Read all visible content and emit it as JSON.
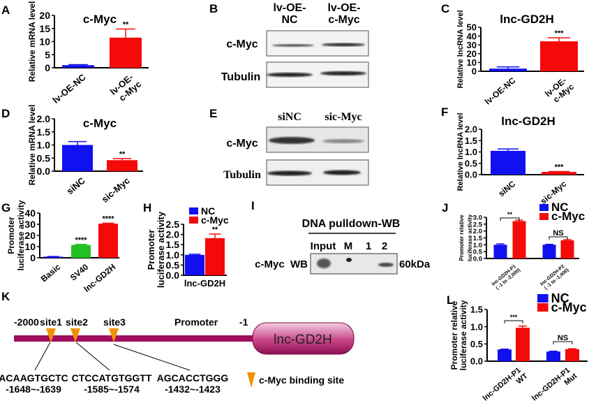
{
  "panel_letters": {
    "A": "A",
    "B": "B",
    "C": "C",
    "D": "D",
    "E": "E",
    "F": "F",
    "G": "G",
    "H": "H",
    "I": "I",
    "J": "J",
    "K": "K",
    "L": "L"
  },
  "colors": {
    "blue": "#1010f0",
    "red": "#f50a0a",
    "green": "#22c022",
    "promoter": "#9e0e5c",
    "site": "#f39200"
  },
  "chart_data": [
    {
      "id": "A",
      "type": "bar",
      "title": "c-Myc",
      "ylabel": [
        "Relative mRNA  level"
      ],
      "ylim": [
        0,
        20
      ],
      "yticks": [
        "0",
        "5",
        "10",
        "15",
        "20"
      ],
      "categories": [
        "lv-OE-NC",
        "lv-OE-\nc-Myc"
      ],
      "series": [
        {
          "colors": [
            "#1010f0",
            "#f50a0a"
          ],
          "values": [
            1.0,
            11.5
          ],
          "errors": [
            0.2,
            3.3
          ]
        }
      ],
      "annotations": [
        {
          "type": "star",
          "category": 1,
          "text": "**"
        }
      ]
    },
    {
      "id": "C",
      "type": "bar",
      "title": "lnc-GD2H",
      "ylabel": [
        "Relative lncRNA level"
      ],
      "ylim": [
        0,
        50
      ],
      "yticks": [
        "0",
        "10",
        "20",
        "30",
        "40",
        "50"
      ],
      "categories": [
        "lv-OE-NC",
        "lv-OE-\nc-Myc"
      ],
      "series": [
        {
          "colors": [
            "#1010f0",
            "#f50a0a"
          ],
          "values": [
            3,
            34
          ],
          "errors": [
            2,
            4
          ]
        }
      ],
      "annotations": [
        {
          "type": "star",
          "category": 1,
          "text": "***"
        }
      ]
    },
    {
      "id": "D",
      "type": "bar",
      "title": "c-Myc",
      "ylabel": [
        "Relative mRNA level"
      ],
      "ylim": [
        0,
        2
      ],
      "yticks": [
        "0.0",
        "0.5",
        "1.0",
        "1.5",
        "2.0"
      ],
      "categories": [
        "siNC",
        "sic-Myc"
      ],
      "series": [
        {
          "colors": [
            "#1010f0",
            "#f50a0a"
          ],
          "values": [
            1.0,
            0.42
          ],
          "errors": [
            0.13,
            0.06
          ]
        }
      ],
      "annotations": [
        {
          "type": "star",
          "category": 1,
          "text": "**"
        }
      ]
    },
    {
      "id": "F",
      "type": "bar",
      "title": "lnc-GD2H",
      "ylabel": [
        "Relative lncRNA level"
      ],
      "ylim": [
        0,
        2
      ],
      "yticks": [
        "0.0",
        "0.5",
        "1.0",
        "1.5",
        "2.0"
      ],
      "categories": [
        "siNC",
        "sic-Myc"
      ],
      "series": [
        {
          "colors": [
            "#1010f0",
            "#f50a0a"
          ],
          "values": [
            1.05,
            0.12
          ],
          "errors": [
            0.08,
            0.02
          ]
        }
      ],
      "annotations": [
        {
          "type": "star",
          "category": 1,
          "text": "***"
        }
      ]
    },
    {
      "id": "G",
      "type": "bar",
      "title": "",
      "ylabel": [
        "Promoter",
        "luciferase activity"
      ],
      "ylim": [
        0,
        40
      ],
      "yticks": [
        "0",
        "10",
        "20",
        "30",
        "40"
      ],
      "categories": [
        "Basic",
        "SV40",
        "lnc-GD2H"
      ],
      "series": [
        {
          "colors": [
            "#1010f0",
            "#22c022",
            "#f50a0a"
          ],
          "values": [
            1,
            11.5,
            30.5
          ],
          "errors": [
            0.2,
            0.5,
            0.4
          ]
        }
      ],
      "annotations": [
        {
          "type": "star",
          "category": 1,
          "text": "****"
        },
        {
          "type": "star",
          "category": 2,
          "text": "****"
        }
      ]
    },
    {
      "id": "H",
      "type": "bar",
      "title": "",
      "ylabel": [
        "Promoter",
        "luciferase activity"
      ],
      "ylim": [
        0,
        2.5
      ],
      "yticks": [
        "0.0",
        "0.5",
        "1.0",
        "1.5",
        "2.0",
        "2.5"
      ],
      "categories": [
        "lnc-GD2H"
      ],
      "legend": [
        "NC",
        "c-Myc"
      ],
      "series": [
        {
          "name": "NC",
          "color": "#1010f0",
          "values": [
            1.0
          ],
          "errors": [
            0.03
          ]
        },
        {
          "name": "c-Myc",
          "color": "#f50a0a",
          "values": [
            1.82
          ],
          "errors": [
            0.2
          ]
        }
      ],
      "annotations": [
        {
          "type": "star",
          "category": 0,
          "series": 1,
          "text": "**"
        }
      ]
    },
    {
      "id": "J",
      "type": "bar",
      "title": "",
      "ylabel": [
        "Promoter relative",
        "luciferase activity"
      ],
      "ylim": [
        0,
        3
      ],
      "yticks": [
        "0.0",
        "0.5",
        "1.0",
        "1.5",
        "2.0",
        "2.5",
        "3.0"
      ],
      "categories": [
        "lnc-GD2H-P1\n( -1 to -2,000)",
        "lnc-GD2H-P2\n( -1 to -1,400)"
      ],
      "legend": [
        "NC",
        "c-Myc"
      ],
      "series": [
        {
          "name": "NC",
          "color": "#1010f0",
          "values": [
            1.0,
            1.0
          ],
          "errors": [
            0.06,
            0.03
          ]
        },
        {
          "name": "c-Myc",
          "color": "#f50a0a",
          "values": [
            2.72,
            1.32
          ],
          "errors": [
            0.07,
            0.05
          ]
        }
      ],
      "annotations": [
        {
          "type": "bracket",
          "category": 0,
          "text": "**"
        },
        {
          "type": "bracket",
          "category": 1,
          "text": "NS"
        }
      ]
    },
    {
      "id": "L",
      "type": "bar",
      "title": "",
      "ylabel": [
        "Promoter relative",
        "luciferase activity"
      ],
      "ylim": [
        0,
        1.5
      ],
      "yticks": [
        "0.0",
        "0.5",
        "1.0",
        "1.5"
      ],
      "categories": [
        "lnc-GD2H-P1\nWT",
        "lnc-GD2H-P1\nMut"
      ],
      "legend": [
        "NC",
        "c-Myc"
      ],
      "series": [
        {
          "name": "NC",
          "color": "#1010f0",
          "values": [
            0.34,
            0.28
          ],
          "errors": [
            0.01,
            0.01
          ]
        },
        {
          "name": "c-Myc",
          "color": "#f50a0a",
          "values": [
            0.97,
            0.35
          ],
          "errors": [
            0.05,
            0.01
          ]
        }
      ],
      "annotations": [
        {
          "type": "bracket",
          "category": 0,
          "text": "***"
        },
        {
          "type": "bracket",
          "category": 1,
          "text": "NS"
        }
      ]
    }
  ],
  "blotB": {
    "lane1": [
      "lv-OE-",
      "NC"
    ],
    "lane2": [
      "lv-OE-",
      "c-Myc"
    ],
    "row1": "c-Myc",
    "row2": "Tubulin"
  },
  "blotE": {
    "lane1": "siNC",
    "lane2": "sic-Myc",
    "row1": "c-Myc",
    "row2": "Tubulin"
  },
  "blotI": {
    "title": "DNA pulldown-WB",
    "lanes": [
      "Input",
      "M",
      "1",
      "2"
    ],
    "row": "c-Myc  WB",
    "size": "60kDa"
  },
  "diagramK": {
    "start": "-2000",
    "end": "-1",
    "promoter": "Promoter",
    "gene": "lnc-GD2H",
    "sites": [
      {
        "name": "site1",
        "sequence": "ACAAGTGCTC",
        "range": "-1648~-1639"
      },
      {
        "name": "site2",
        "sequence": "CTCCATGTGGTT",
        "range": "-1585~-1574"
      },
      {
        "name": "site3",
        "sequence": "AGCACCTGGG",
        "range": "-1432~-1423"
      }
    ],
    "legend": "c-Myc binding site"
  }
}
